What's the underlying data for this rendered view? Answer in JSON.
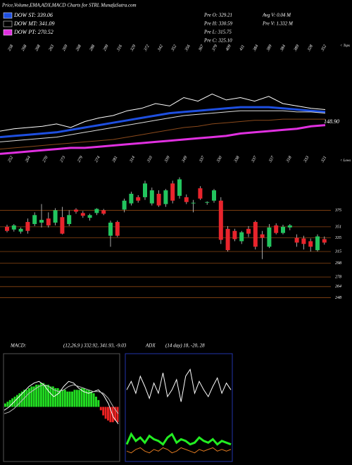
{
  "chart_data": [
    {
      "type": "ema",
      "title": "Price,Volume,EMA,ADX,MACD Charts for STRL MunafaSutra.com",
      "annotations": [
        "Pre  O: 329.21",
        "Pre  H: 330.59",
        "Pre  L: 315.75",
        "Pre  C: 325.10",
        "Avg V: 0.04  M",
        "Pre  V: 1.332  M"
      ],
      "tops": [
        "258",
        "268",
        "268",
        "263",
        "269",
        "268",
        "288",
        "299",
        "316",
        "329",
        "372",
        "342",
        "352",
        "356",
        "367",
        "379",
        "409",
        "411",
        "384",
        "389",
        "384",
        "389",
        "328",
        "352"
      ],
      "tops_label": "< Tops",
      "lows": [
        "252",
        "264",
        "270",
        "273",
        "279",
        "274",
        "281",
        "314",
        "310",
        "339",
        "349",
        "337",
        "330",
        "338",
        "337",
        "327",
        "318",
        "333",
        "321"
      ],
      "lows_label": "< Lows",
      "last_label": "148.90",
      "ylim": [
        0,
        100
      ],
      "series": [
        {
          "color": "#ffffff",
          "values": [
            27,
            29,
            30,
            31,
            33,
            30,
            35,
            38,
            40,
            44,
            46,
            50,
            48,
            55,
            52,
            58,
            53,
            55,
            52,
            56,
            50,
            48,
            46,
            45
          ]
        },
        {
          "color": "#8b4a1c",
          "values": [
            12,
            13,
            14,
            15,
            16,
            17,
            18,
            19,
            20,
            22,
            24,
            26,
            28,
            30,
            31,
            33,
            34,
            35,
            36,
            36,
            37,
            37,
            37,
            37
          ]
        },
        {
          "name": "DOW ST: 339.06",
          "color": "#1e4fe0",
          "values": [
            22,
            23,
            24,
            25,
            26,
            28,
            30,
            32,
            34,
            36,
            38,
            40,
            42,
            43,
            44,
            45,
            46,
            47,
            47,
            47,
            46,
            45,
            44,
            43
          ]
        },
        {
          "name": "DOW MT: 341.09",
          "color": "#dddddd",
          "values": [
            18,
            19,
            20,
            21,
            22,
            24,
            26,
            28,
            30,
            32,
            34,
            36,
            38,
            40,
            41,
            42,
            43,
            44,
            44,
            44,
            44,
            43,
            43,
            42
          ]
        },
        {
          "name": "DOW PT: 270.52",
          "color": "#e030e0",
          "values": [
            8,
            9,
            10,
            11,
            12,
            13,
            13,
            14,
            15,
            16,
            17,
            18,
            19,
            20,
            21,
            22,
            23,
            25,
            26,
            27,
            28,
            29,
            31,
            32
          ]
        }
      ]
    },
    {
      "type": "candlestick",
      "up_color": "#22c55e",
      "down_color": "#e8242c",
      "grid_color": "#8b4513",
      "ylim": [
        230,
        440
      ],
      "yticks": [
        375,
        351,
        335,
        315,
        298,
        278,
        264,
        248
      ],
      "open": [
        351,
        347,
        344,
        358,
        355,
        357,
        363,
        357,
        365,
        355,
        376,
        371,
        364,
        371,
        375,
        338,
        358,
        376,
        385,
        394,
        394,
        385,
        399,
        384,
        414,
        396,
        394,
        385,
        407,
        386,
        389,
        389,
        348,
        345,
        330,
        348,
        358,
        340,
        322,
        353,
        342,
        350,
        335,
        334,
        330,
        317,
        333
      ],
      "high": [
        354,
        355,
        350,
        363,
        372,
        384,
        372,
        378,
        380,
        375,
        378,
        374,
        370,
        378,
        377,
        360,
        360,
        392,
        402,
        397,
        418,
        408,
        404,
        406,
        418,
        423,
        398,
        390,
        410,
        388,
        406,
        394,
        352,
        348,
        345,
        352,
        360,
        345,
        355,
        356,
        354,
        355,
        340,
        338,
        334,
        340,
        337
      ],
      "low": [
        343,
        344,
        341,
        341,
        352,
        350,
        350,
        353,
        340,
        352,
        370,
        364,
        360,
        368,
        368,
        322,
        336,
        372,
        382,
        386,
        390,
        382,
        380,
        380,
        385,
        392,
        384,
        372,
        390,
        383,
        386,
        326,
        315,
        330,
        326,
        336,
        318,
        304,
        320,
        340,
        340,
        346,
        322,
        318,
        315,
        315,
        325
      ],
      "close": [
        345,
        353,
        348,
        345,
        368,
        361,
        353,
        375,
        341,
        368,
        373,
        367,
        368,
        377,
        370,
        357,
        338,
        389,
        399,
        389,
        414,
        404,
        382,
        404,
        389,
        420,
        387,
        386,
        392,
        387,
        404,
        332,
        317,
        333,
        343,
        341,
        322,
        335,
        350,
        342,
        351,
        353,
        328,
        326,
        322,
        337,
        328
      ]
    },
    {
      "type": "macd",
      "title": "MACD:",
      "subtitle": "(12,26,9 ) 332.92, 341.93, -9.03",
      "ylim": [
        -30,
        30
      ],
      "pos_color": "#22dd22",
      "neg_color": "#ee2222",
      "histogram": [
        2,
        3,
        4,
        5,
        6,
        7,
        8,
        9,
        10,
        10,
        11,
        12,
        12,
        13,
        13,
        14,
        14,
        13,
        13,
        12,
        12,
        11,
        11,
        10,
        10,
        10,
        9,
        9,
        9,
        10,
        10,
        10,
        11,
        11,
        10,
        10,
        9,
        8,
        6,
        4,
        -2,
        -5,
        -7,
        -8,
        -9,
        -9,
        -8,
        -9
      ],
      "series": [
        {
          "color": "#ffffff",
          "values": [
            -2,
            0,
            3,
            6,
            9,
            12,
            14,
            15,
            13,
            9,
            6,
            8,
            12,
            15,
            14,
            11,
            9,
            8,
            9,
            10,
            7,
            2,
            -6,
            -10
          ]
        },
        {
          "color": "#bbbbbb",
          "values": [
            -4,
            -3,
            -1,
            2,
            5,
            8,
            10,
            12,
            13,
            12,
            10,
            9,
            10,
            12,
            13,
            12,
            11,
            10,
            9,
            9,
            8,
            5,
            0,
            -4
          ]
        }
      ]
    },
    {
      "type": "adx",
      "title": "ADX",
      "subtitle": "(14 day) 18, -20, 28",
      "ylim": [
        0,
        60
      ],
      "series": [
        {
          "color": "#ffffff",
          "values": [
            40,
            45,
            38,
            48,
            42,
            35,
            44,
            38,
            50,
            36,
            40,
            46,
            33,
            48,
            52,
            38,
            45,
            40,
            36,
            42,
            47,
            38,
            44,
            40
          ]
        },
        {
          "color": "#22ee22",
          "values": [
            8,
            14,
            10,
            12,
            9,
            13,
            11,
            10,
            8,
            12,
            14,
            9,
            11,
            10,
            8,
            9,
            12,
            10,
            9,
            11,
            8,
            10,
            9,
            8
          ]
        },
        {
          "color": "#e07a20",
          "values": [
            4,
            3,
            5,
            6,
            4,
            3,
            5,
            4,
            6,
            5,
            3,
            4,
            6,
            5,
            4,
            3,
            5,
            4,
            5,
            6,
            4,
            5,
            4,
            5
          ]
        }
      ]
    }
  ]
}
